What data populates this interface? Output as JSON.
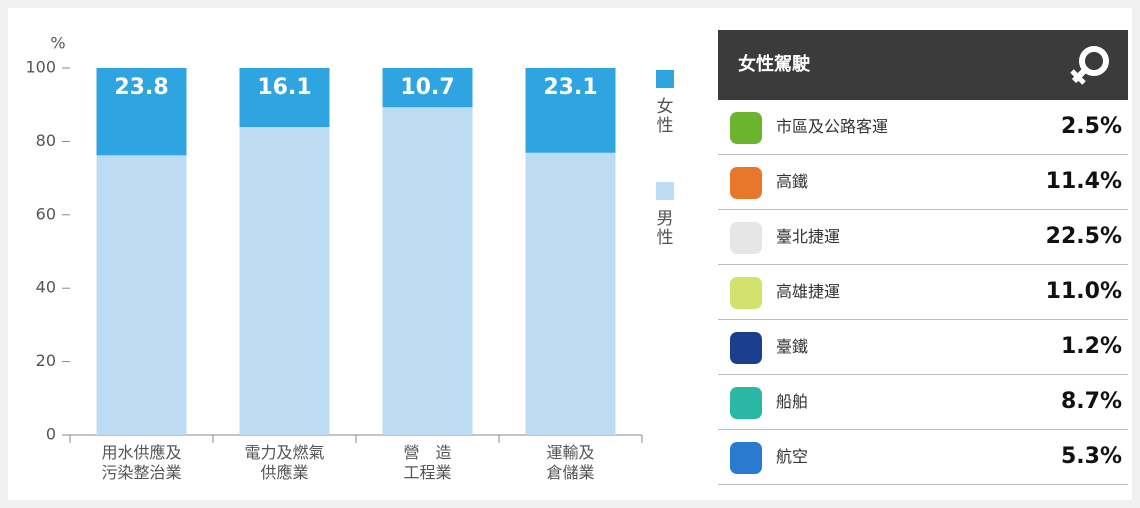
{
  "chart_data": {
    "type": "stacked_bar",
    "y_unit": "%",
    "categories": [
      "用水供應及\n污染整治業",
      "電力及燃氣\n供應業",
      "營　造\n工程業",
      "運輸及\n倉儲業"
    ],
    "series": [
      {
        "name": "男性",
        "color": "#bddcf4",
        "values": [
          76.2,
          83.9,
          89.3,
          76.9
        ]
      },
      {
        "name": "女性",
        "color": "#2ea4e0",
        "values": [
          23.8,
          16.1,
          10.7,
          23.1
        ]
      }
    ],
    "ylim": [
      0,
      100
    ],
    "yticks": [
      0,
      20,
      40,
      60,
      80,
      100
    ]
  },
  "panel": {
    "title": "女性駕駛",
    "rows": [
      {
        "name": "市區及公路客運",
        "value": "2.5%"
      },
      {
        "name": "高鐵",
        "value": "11.4%"
      },
      {
        "name": "臺北捷運",
        "value": "22.5%"
      },
      {
        "name": "高雄捷運",
        "value": "11.0%"
      },
      {
        "name": "臺鐵",
        "value": "1.2%"
      },
      {
        "name": "船舶",
        "value": "8.7%"
      },
      {
        "name": "航空",
        "value": "5.3%"
      }
    ]
  }
}
